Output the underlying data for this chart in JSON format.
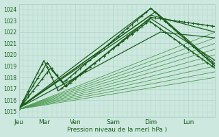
{
  "xlabel": "Pression niveau de la mer( hPa )",
  "bg_color": "#cce8df",
  "grid_color": "#aacfc5",
  "line_color_dark": "#1a5c1a",
  "line_color_med": "#2a7a2a",
  "line_color_light": "#4a9a4a",
  "ylim": [
    1014.5,
    1024.5
  ],
  "ytick_min": 1015,
  "ytick_max": 1024,
  "day_labels": [
    "Jeu",
    "Mar",
    "Ven",
    "Sam",
    "Dim",
    "Lun"
  ],
  "day_positions": [
    0,
    16,
    36,
    60,
    84,
    108
  ],
  "total_points": 126,
  "figsize": [
    3.2,
    2.0
  ],
  "dpi": 100
}
